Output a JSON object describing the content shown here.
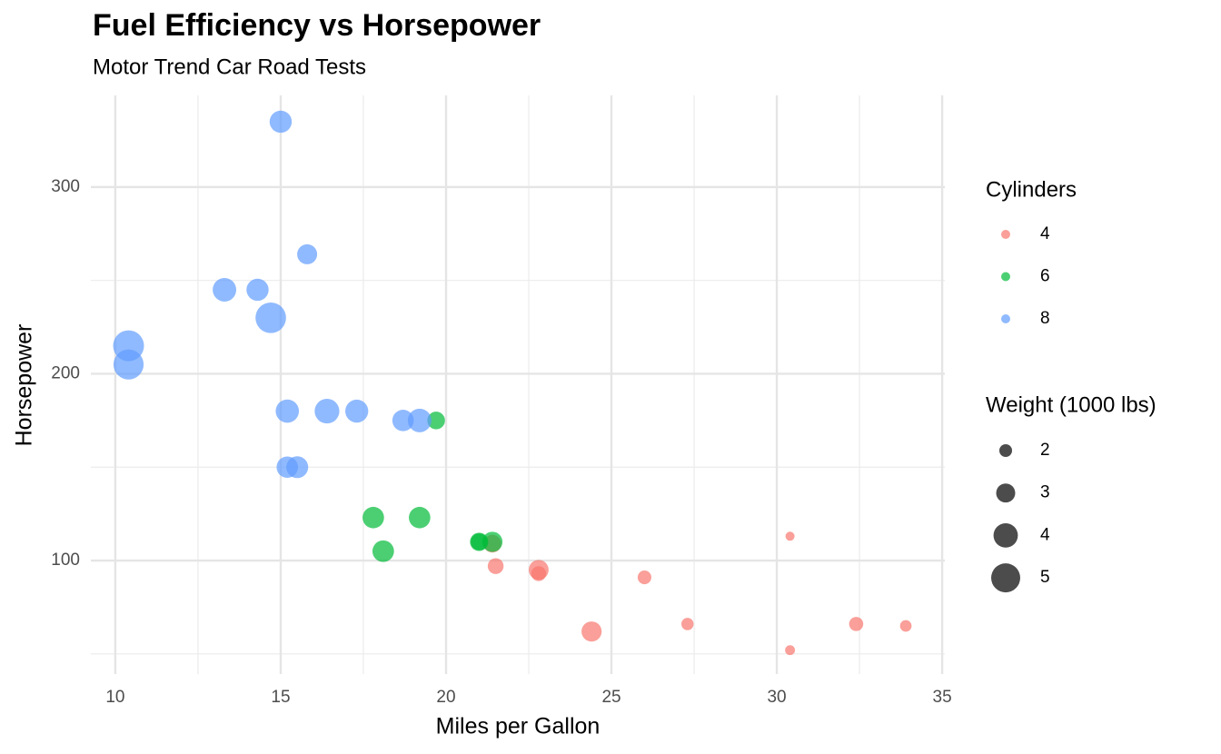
{
  "chart_data": {
    "type": "scatter",
    "title": "Fuel Efficiency vs Horsepower",
    "subtitle": "Motor Trend Car Road Tests",
    "x_label": "Miles per Gallon",
    "y_label": "Horsepower",
    "xlim": [
      9.26,
      35.08
    ],
    "ylim": [
      39.2,
      349.1
    ],
    "xticks": [
      10,
      15,
      20,
      25,
      30,
      35
    ],
    "yticks": [
      100,
      200,
      300
    ],
    "x_minor_grid": [
      12.5,
      17.5,
      22.5,
      27.5,
      32.5
    ],
    "y_minor_grid": [
      50,
      150,
      250
    ],
    "grid": true,
    "legend_title": "Cylinders",
    "size_legend": {
      "title": "Weight (1000 lbs)",
      "values": [
        2,
        3,
        4,
        5
      ]
    },
    "series": [
      {
        "name": "4",
        "color": "#F8766D",
        "x": [
          22.8,
          24.4,
          22.8,
          32.4,
          30.4,
          33.9,
          21.5,
          27.3,
          26.0,
          30.4,
          21.4
        ],
        "values": [
          93,
          62,
          95,
          66,
          52,
          65,
          97,
          66,
          91,
          113,
          109
        ],
        "sizes": [
          2.32,
          3.19,
          3.15,
          2.2,
          1.615,
          1.835,
          2.465,
          1.935,
          2.14,
          1.513,
          2.78
        ]
      },
      {
        "name": "6",
        "color": "#00BA38",
        "x": [
          21.0,
          21.0,
          21.4,
          18.1,
          19.2,
          17.8,
          19.7
        ],
        "values": [
          110,
          110,
          110,
          105,
          123,
          123,
          175
        ],
        "sizes": [
          2.62,
          2.875,
          3.215,
          3.46,
          3.44,
          3.44,
          2.77
        ]
      },
      {
        "name": "8",
        "color": "#619CFF",
        "x": [
          18.7,
          14.3,
          16.4,
          17.3,
          15.2,
          10.4,
          10.4,
          14.7,
          15.5,
          15.2,
          13.3,
          19.2,
          15.8,
          15.0
        ],
        "values": [
          175,
          245,
          180,
          180,
          180,
          205,
          215,
          230,
          150,
          150,
          245,
          175,
          264,
          335
        ],
        "sizes": [
          3.44,
          3.57,
          4.07,
          3.73,
          3.78,
          5.25,
          5.424,
          5.345,
          3.52,
          3.435,
          3.84,
          3.845,
          3.17,
          3.57
        ]
      }
    ]
  }
}
